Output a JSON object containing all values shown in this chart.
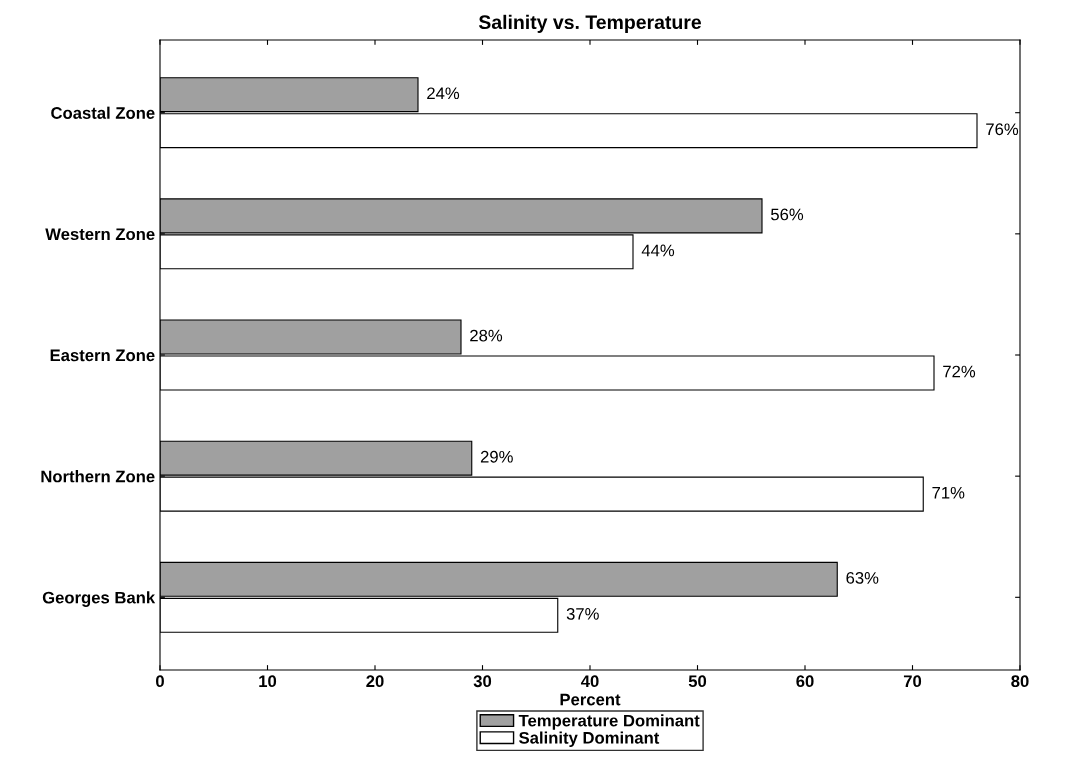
{
  "chart_data": {
    "type": "bar",
    "orientation": "horizontal",
    "title": "Salinity vs. Temperature",
    "xlabel": "Percent",
    "categories": [
      "Coastal Zone",
      "Western Zone",
      "Eastern Zone",
      "Northern Zone",
      "Georges Bank"
    ],
    "series": [
      {
        "name": "Temperature Dominant",
        "color": "#a0a0a0",
        "values": [
          24,
          56,
          28,
          29,
          63
        ],
        "value_labels": [
          "24%",
          "56%",
          "28%",
          "29%",
          "63%"
        ]
      },
      {
        "name": "Salinity Dominant",
        "color": "#ffffff",
        "values": [
          76,
          44,
          72,
          71,
          37
        ],
        "value_labels": [
          "76%",
          "44%",
          "72%",
          "71%",
          "37%"
        ]
      }
    ],
    "xlim": [
      0,
      80
    ],
    "xticks": [
      0,
      10,
      20,
      30,
      40,
      50,
      60,
      70,
      80
    ],
    "grid": false,
    "legend": "bottom"
  }
}
